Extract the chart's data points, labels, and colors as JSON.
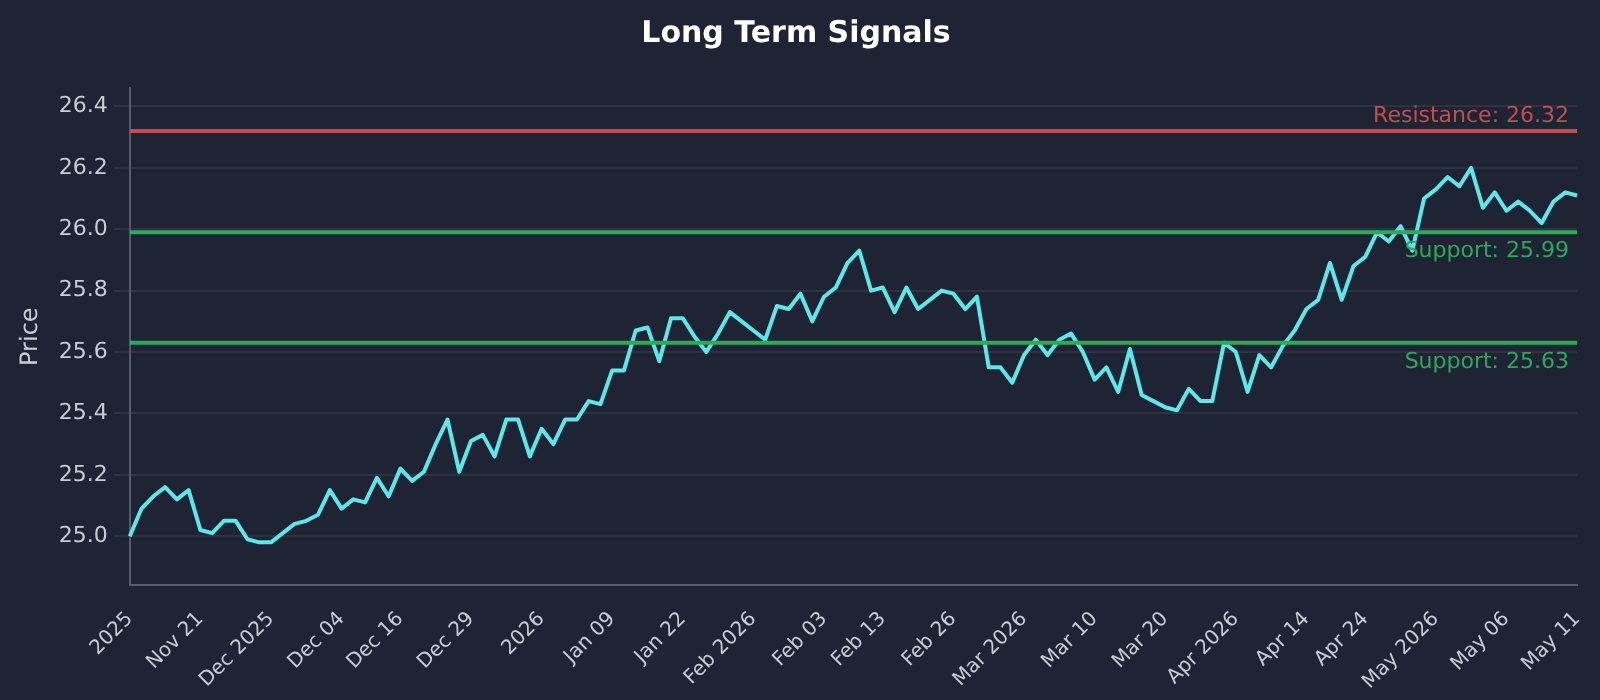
{
  "chart_data": {
    "type": "line",
    "title": "Long Term Signals",
    "ylabel": "Price",
    "categories": [
      "2025",
      null,
      null,
      null,
      null,
      null,
      "Nov 21",
      null,
      null,
      null,
      null,
      null,
      "Dec 2025",
      null,
      null,
      null,
      null,
      null,
      "Dec 04",
      null,
      null,
      null,
      null,
      "Dec 16",
      null,
      null,
      null,
      null,
      null,
      "Dec 29",
      null,
      null,
      null,
      null,
      null,
      "2026",
      null,
      null,
      null,
      null,
      null,
      "Jan 09",
      null,
      null,
      null,
      null,
      null,
      "Jan 22",
      null,
      null,
      null,
      null,
      null,
      "Feb 2026",
      null,
      null,
      null,
      null,
      null,
      "Feb 03",
      null,
      null,
      null,
      null,
      "Feb 13",
      null,
      null,
      null,
      null,
      null,
      "Feb 26",
      null,
      null,
      null,
      null,
      null,
      "Mar 2026",
      null,
      null,
      null,
      null,
      null,
      "Mar 10",
      null,
      null,
      null,
      null,
      null,
      "Mar 20",
      null,
      null,
      null,
      null,
      null,
      "Apr 2026",
      null,
      null,
      null,
      null,
      null,
      "Apr 14",
      null,
      null,
      null,
      null,
      "Apr 24",
      null,
      null,
      null,
      null,
      null,
      "May 2026",
      null,
      null,
      null,
      null,
      null,
      "May 06",
      null,
      null,
      null,
      null,
      null,
      "May 11"
    ],
    "series": [
      {
        "color": "#5ee6eb",
        "values": [
          25.0,
          25.09,
          25.13,
          25.16,
          25.12,
          25.15,
          25.02,
          25.01,
          25.05,
          25.05,
          24.99,
          24.98,
          24.98,
          25.01,
          25.04,
          25.05,
          25.07,
          25.15,
          25.09,
          25.12,
          25.11,
          25.19,
          25.13,
          25.22,
          25.18,
          25.21,
          25.3,
          25.38,
          25.21,
          25.31,
          25.33,
          25.26,
          25.38,
          25.38,
          25.26,
          25.35,
          25.3,
          25.38,
          25.38,
          25.44,
          25.43,
          25.54,
          25.54,
          25.67,
          25.68,
          25.57,
          25.71,
          25.71,
          25.65,
          25.6,
          25.66,
          25.73,
          25.7,
          25.67,
          25.64,
          25.75,
          25.74,
          25.79,
          25.7,
          25.78,
          25.81,
          25.89,
          25.93,
          25.8,
          25.81,
          25.73,
          25.81,
          25.74,
          25.77,
          25.8,
          25.79,
          25.74,
          25.78,
          25.55,
          25.55,
          25.5,
          25.59,
          25.64,
          25.59,
          25.64,
          25.66,
          25.6,
          25.51,
          25.55,
          25.47,
          25.61,
          25.46,
          25.44,
          25.42,
          25.41,
          25.48,
          25.44,
          25.44,
          25.63,
          25.6,
          25.47,
          25.59,
          25.55,
          25.62,
          25.67,
          25.74,
          25.77,
          25.89,
          25.77,
          25.88,
          25.91,
          25.99,
          25.96,
          26.01,
          25.93,
          26.1,
          26.13,
          26.17,
          26.14,
          26.2,
          26.07,
          26.12,
          26.06,
          26.09,
          26.06,
          26.02,
          26.09,
          26.12,
          26.11
        ]
      }
    ],
    "ylim": [
      24.84,
      26.46
    ],
    "yticks": [
      {
        "value": 25,
        "label": "25.0"
      },
      25.2,
      25.4,
      25.6,
      25.8,
      {
        "value": 26,
        "label": "26.0"
      },
      26.2,
      26.4
    ],
    "ref_lines": [
      {
        "axis": "y",
        "value": 26.32,
        "label": "Resistance: 26.32",
        "color": "#c0504d"
      },
      {
        "axis": "y",
        "value": 25.99,
        "label": "Support: 25.99",
        "color": "#2ea85a"
      },
      {
        "axis": "y",
        "value": 25.63,
        "label": "Support: 25.63",
        "color": "#2ea85a"
      }
    ],
    "grid": "y",
    "legend": false,
    "marker": "none",
    "line_style": "solid"
  }
}
